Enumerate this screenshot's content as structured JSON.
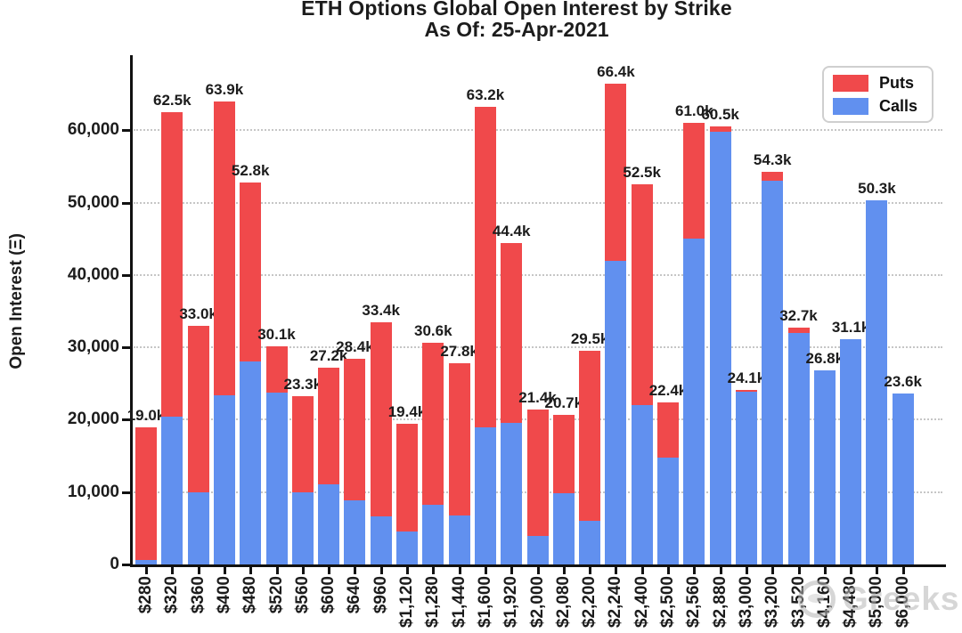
{
  "title": {
    "line1": "ETH Options Global Open Interest by Strike",
    "line2": "As Of: 25-Apr-2021"
  },
  "y_axis": {
    "label": "Open Interest (Ξ)",
    "ticks": [
      {
        "label": "0",
        "value": 0
      },
      {
        "label": "10,000",
        "value": 10000
      },
      {
        "label": "20,000",
        "value": 20000
      },
      {
        "label": "30,000",
        "value": 30000
      },
      {
        "label": "40,000",
        "value": 40000
      },
      {
        "label": "50,000",
        "value": 50000
      },
      {
        "label": "60,000",
        "value": 60000
      }
    ]
  },
  "legend": {
    "puts_label": "Puts",
    "calls_label": "Calls"
  },
  "colors": {
    "puts": "#f0494b",
    "calls": "#6190ef",
    "grid": "#c6c6c6",
    "axis": "#111111",
    "text": "#1c1c1c",
    "watermark": "#b5b5b5"
  },
  "watermark": {
    "text": "Greeks",
    "icon": "greeks-circle-logo"
  },
  "chart_data": {
    "type": "bar",
    "stacked": true,
    "title": "ETH Options Global Open Interest by Strike — As Of: 25-Apr-2021",
    "xlabel": "",
    "ylabel": "Open Interest (Ξ)",
    "ylim": [
      0,
      70000
    ],
    "grid": "dotted-horizontal",
    "legend_position": "upper right",
    "categories": [
      "$280",
      "$320",
      "$360",
      "$400",
      "$480",
      "$520",
      "$560",
      "$600",
      "$640",
      "$960",
      "$1,120",
      "$1,280",
      "$1,440",
      "$1,600",
      "$1,920",
      "$2,000",
      "$2,080",
      "$2,200",
      "$2,240",
      "$2,400",
      "$2,500",
      "$2,560",
      "$2,880",
      "$3,000",
      "$3,200",
      "$3,520",
      "$4,160",
      "$4,480",
      "$5,000",
      "$6,000"
    ],
    "series": [
      {
        "name": "Calls",
        "color": "#6190ef",
        "values": [
          600,
          20400,
          10000,
          23400,
          28000,
          23800,
          10000,
          11100,
          8800,
          6600,
          4600,
          8200,
          6800,
          19000,
          19600,
          3900,
          9900,
          6000,
          42000,
          22000,
          14800,
          45000,
          59800,
          23900,
          53000,
          32000,
          26800,
          31100,
          50300,
          23600
        ]
      },
      {
        "name": "Puts",
        "color": "#f0494b",
        "values": [
          18400,
          42100,
          23000,
          40500,
          24800,
          6300,
          13300,
          16100,
          19600,
          26800,
          14800,
          22400,
          21000,
          44200,
          24800,
          17500,
          10800,
          23500,
          24400,
          30500,
          7600,
          16000,
          700,
          200,
          1300,
          700,
          0,
          0,
          0,
          0
        ]
      }
    ],
    "total_labels": [
      "19.0k",
      "62.5k",
      "33.0k",
      "63.9k",
      "52.8k",
      "30.1k",
      "23.3k",
      "27.2k",
      "28.4k",
      "33.4k",
      "19.4k",
      "30.6k",
      "27.8k",
      "63.2k",
      "44.4k",
      "21.4k",
      "20.7k",
      "29.5k",
      "66.4k",
      "52.5k",
      "22.4k",
      "61.0k",
      "60.5k",
      "24.1k",
      "54.3k",
      "32.7k",
      "26.8k",
      "31.1k",
      "50.3k",
      "23.6k"
    ]
  }
}
